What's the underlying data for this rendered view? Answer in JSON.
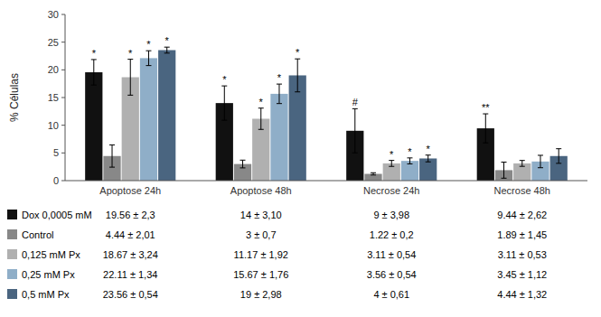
{
  "chart_data": {
    "type": "bar",
    "categories": [
      "Apoptose 24h",
      "Apoptose 48h",
      "Necrose 24h",
      "Necrose 48h"
    ],
    "series": [
      {
        "name": "Dox 0,0005 mM",
        "color": "#111111",
        "values": [
          19.56,
          14.0,
          9.0,
          9.44
        ],
        "errors": [
          2.3,
          3.1,
          3.98,
          2.62
        ],
        "annotations": [
          "*",
          "*",
          "#",
          "**"
        ],
        "table_labels": [
          "19.56 ± 2,3",
          "14 ± 3,10",
          "9 ± 3,98",
          "9.44 ± 2,62"
        ]
      },
      {
        "name": "Control",
        "color": "#888888",
        "values": [
          4.44,
          3.0,
          1.22,
          1.89
        ],
        "errors": [
          2.01,
          0.7,
          0.2,
          1.45
        ],
        "annotations": [
          null,
          null,
          null,
          null
        ],
        "table_labels": [
          "4.44 ± 2,01",
          "3 ± 0,7",
          "1.22 ± 0,2",
          "1.89 ± 1,45"
        ]
      },
      {
        "name": "0,125 mM Px",
        "color": "#b0b0b0",
        "values": [
          18.67,
          11.17,
          3.11,
          3.11
        ],
        "errors": [
          3.24,
          1.92,
          0.54,
          0.53
        ],
        "annotations": [
          "*",
          "*",
          "*",
          null
        ],
        "table_labels": [
          "18.67 ± 3,24",
          "11.17 ± 1,92",
          "3.11 ± 0,54",
          "3.11 ± 0,53"
        ]
      },
      {
        "name": "0,25 mM Px",
        "color": "#8faec8",
        "values": [
          22.11,
          15.67,
          3.56,
          3.45
        ],
        "errors": [
          1.34,
          1.76,
          0.54,
          1.12
        ],
        "annotations": [
          "*",
          "*",
          "*",
          null
        ],
        "table_labels": [
          "22.11 ± 1,34",
          "15.67 ± 1,76",
          "3.56 ± 0,54",
          "3.45 ± 1,12"
        ]
      },
      {
        "name": "0,5 mM Px",
        "color": "#4a6580",
        "values": [
          23.56,
          19.0,
          4.0,
          4.44
        ],
        "errors": [
          0.54,
          2.98,
          0.61,
          1.32
        ],
        "annotations": [
          "*",
          "*",
          "*",
          null
        ],
        "table_labels": [
          "23.56 ± 0,54",
          "19 ± 2,98",
          "4 ± 0,61",
          "4.44 ± 1,32"
        ]
      }
    ],
    "y_label": "% Células",
    "ylim": [
      0,
      30
    ],
    "yticks": [
      0,
      5,
      10,
      15,
      20,
      25,
      30
    ],
    "grid": false
  }
}
